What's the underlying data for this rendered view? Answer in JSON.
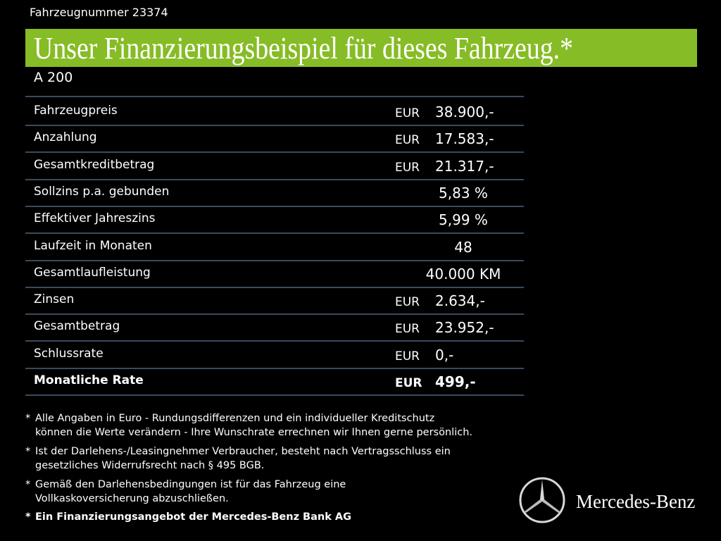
{
  "header": {
    "vehicle_number": "Fahrzeugnummer 23374",
    "title": "Unser Finanzierungsbeispiel für dieses Fahrzeug.*",
    "model": "A 200"
  },
  "table": {
    "rows": [
      {
        "label": "Fahrzeugpreis",
        "currency": "EUR",
        "value": "38.900,-"
      },
      {
        "label": "Anzahlung",
        "currency": "EUR",
        "value": "17.583,-"
      },
      {
        "label": "Gesamtkreditbetrag",
        "currency": "EUR",
        "value": "21.317,-"
      },
      {
        "label": "Sollzins p.a. gebunden",
        "value": "5,83 %"
      },
      {
        "label": "Effektiver Jahreszins",
        "value": "5,99 %"
      },
      {
        "label": "Laufzeit in Monaten",
        "value": "48"
      },
      {
        "label": "Gesamtlaufleistung",
        "value": "40.000 KM"
      },
      {
        "label": "Zinsen",
        "currency": "EUR",
        "value": "2.634,-"
      },
      {
        "label": "Gesamtbetrag",
        "currency": "EUR",
        "value": "23.952,-"
      },
      {
        "label": "Schlussrate",
        "currency": "EUR",
        "value": "0,-"
      },
      {
        "label": "Monatliche Rate",
        "currency": "EUR",
        "value": "499,-"
      }
    ]
  },
  "footnotes": [
    {
      "marker": "*",
      "lines": [
        "Alle Angaben in Euro - Rundungsdifferenzen und ein individueller Kreditschutz",
        "können die Werte verändern - Ihre Wunschrate errechnen wir Ihnen gerne persönlich."
      ]
    },
    {
      "marker": "*",
      "lines": [
        "Ist der Darlehens-/Leasingnehmer Verbraucher, besteht nach Vertragsschluss ein",
        "gesetzliches  Widerrufsrecht nach § 495 BGB."
      ]
    },
    {
      "marker": "*",
      "lines": [
        "Gemäß den Darlehensbedingungen ist für das Fahrzeug eine",
        "Vollkaskoversicherung abzuschließen."
      ]
    },
    {
      "marker": "*",
      "lines": [
        "Ein Finanzierungsangebot der Mercedes-Benz Bank AG"
      ]
    }
  ],
  "footer": {
    "brand": "Mercedes-Benz"
  }
}
